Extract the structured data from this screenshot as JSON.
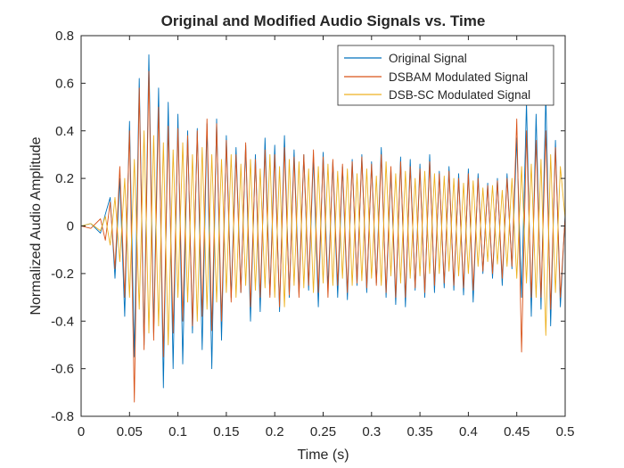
{
  "chart_data": {
    "type": "line",
    "title": "Original and Modified Audio Signals vs. Time",
    "xlabel": "Time (s)",
    "ylabel": "Normalized Audio Amplitude",
    "xlim": [
      0,
      0.5
    ],
    "ylim": [
      -0.8,
      0.8
    ],
    "x_ticks": [
      0,
      0.05,
      0.1,
      0.15,
      0.2,
      0.25,
      0.3,
      0.35,
      0.4,
      0.45,
      0.5
    ],
    "x_tick_labels": [
      "0",
      "0.05",
      "0.1",
      "0.15",
      "0.2",
      "0.25",
      "0.3",
      "0.35",
      "0.4",
      "0.45",
      "0.5"
    ],
    "y_ticks": [
      -0.8,
      -0.6,
      -0.4,
      -0.2,
      0,
      0.2,
      0.4,
      0.6,
      0.8
    ],
    "y_tick_labels": [
      "-0.8",
      "-0.6",
      "-0.4",
      "-0.2",
      "0",
      "0.2",
      "0.4",
      "0.6",
      "0.8"
    ],
    "grid": false,
    "legend_position": "top-right",
    "series": [
      {
        "name": "Original Signal",
        "color": "#0072BD",
        "x": [
          0.0,
          0.01,
          0.02,
          0.025,
          0.03,
          0.035,
          0.04,
          0.045,
          0.05,
          0.055,
          0.06,
          0.065,
          0.07,
          0.075,
          0.08,
          0.085,
          0.09,
          0.095,
          0.1,
          0.105,
          0.11,
          0.115,
          0.12,
          0.125,
          0.13,
          0.135,
          0.14,
          0.145,
          0.15,
          0.155,
          0.16,
          0.165,
          0.17,
          0.175,
          0.18,
          0.185,
          0.19,
          0.195,
          0.2,
          0.205,
          0.21,
          0.215,
          0.22,
          0.225,
          0.23,
          0.235,
          0.24,
          0.245,
          0.25,
          0.255,
          0.26,
          0.265,
          0.27,
          0.275,
          0.28,
          0.285,
          0.29,
          0.295,
          0.3,
          0.305,
          0.31,
          0.315,
          0.32,
          0.325,
          0.33,
          0.335,
          0.34,
          0.345,
          0.35,
          0.355,
          0.36,
          0.365,
          0.37,
          0.375,
          0.38,
          0.385,
          0.39,
          0.395,
          0.4,
          0.405,
          0.41,
          0.415,
          0.42,
          0.425,
          0.43,
          0.435,
          0.44,
          0.445,
          0.45,
          0.455,
          0.46,
          0.465,
          0.47,
          0.475,
          0.48,
          0.485,
          0.49,
          0.495,
          0.5
        ],
        "y": [
          0.0,
          0.01,
          -0.03,
          0.05,
          0.12,
          -0.22,
          0.2,
          -0.38,
          0.44,
          -0.55,
          0.62,
          -0.5,
          0.72,
          -0.45,
          0.58,
          -0.68,
          0.52,
          -0.6,
          0.47,
          -0.58,
          0.4,
          -0.45,
          0.41,
          -0.52,
          0.43,
          -0.6,
          0.45,
          -0.48,
          0.38,
          -0.3,
          0.33,
          -0.28,
          0.34,
          -0.4,
          0.3,
          -0.36,
          0.37,
          -0.29,
          0.34,
          -0.36,
          0.38,
          -0.3,
          0.32,
          -0.28,
          0.3,
          -0.27,
          0.29,
          -0.34,
          0.31,
          -0.26,
          0.27,
          -0.3,
          0.25,
          -0.31,
          0.28,
          -0.25,
          0.3,
          -0.28,
          0.27,
          -0.24,
          0.33,
          -0.3,
          0.24,
          -0.33,
          0.29,
          -0.34,
          0.28,
          -0.27,
          0.26,
          -0.3,
          0.3,
          -0.28,
          0.23,
          -0.26,
          0.25,
          -0.27,
          0.22,
          -0.29,
          0.24,
          -0.32,
          0.22,
          -0.2,
          0.18,
          -0.22,
          0.2,
          -0.25,
          0.22,
          -0.18,
          0.37,
          -0.3,
          0.52,
          -0.38,
          0.47,
          -0.35,
          0.55,
          -0.42,
          0.36,
          -0.34,
          0.05
        ]
      },
      {
        "name": "DSBAM Modulated Signal",
        "color": "#D95319",
        "x": [
          0.0,
          0.01,
          0.02,
          0.025,
          0.03,
          0.035,
          0.04,
          0.045,
          0.05,
          0.055,
          0.06,
          0.065,
          0.07,
          0.075,
          0.08,
          0.085,
          0.09,
          0.095,
          0.1,
          0.105,
          0.11,
          0.115,
          0.12,
          0.125,
          0.13,
          0.135,
          0.14,
          0.145,
          0.15,
          0.155,
          0.16,
          0.165,
          0.17,
          0.175,
          0.18,
          0.185,
          0.19,
          0.195,
          0.2,
          0.205,
          0.21,
          0.215,
          0.22,
          0.225,
          0.23,
          0.235,
          0.24,
          0.245,
          0.25,
          0.255,
          0.26,
          0.265,
          0.27,
          0.275,
          0.28,
          0.285,
          0.29,
          0.295,
          0.3,
          0.305,
          0.31,
          0.315,
          0.32,
          0.325,
          0.33,
          0.335,
          0.34,
          0.345,
          0.35,
          0.355,
          0.36,
          0.365,
          0.37,
          0.375,
          0.38,
          0.385,
          0.39,
          0.395,
          0.4,
          0.405,
          0.41,
          0.415,
          0.42,
          0.425,
          0.43,
          0.435,
          0.44,
          0.445,
          0.45,
          0.455,
          0.46,
          0.465,
          0.47,
          0.475,
          0.48,
          0.485,
          0.49,
          0.495,
          0.5
        ],
        "y": [
          0.0,
          -0.01,
          0.03,
          -0.06,
          0.1,
          -0.18,
          0.25,
          -0.3,
          0.4,
          -0.74,
          0.58,
          -0.52,
          0.65,
          -0.48,
          0.5,
          -0.55,
          0.42,
          -0.45,
          0.41,
          -0.4,
          0.38,
          -0.42,
          0.4,
          -0.38,
          0.45,
          -0.44,
          0.43,
          -0.4,
          0.36,
          -0.32,
          0.3,
          -0.28,
          0.35,
          -0.34,
          0.28,
          -0.3,
          0.32,
          -0.3,
          0.3,
          -0.34,
          0.33,
          -0.29,
          0.29,
          -0.3,
          0.3,
          -0.25,
          0.32,
          -0.28,
          0.29,
          -0.3,
          0.28,
          -0.25,
          0.26,
          -0.28,
          0.27,
          -0.24,
          0.29,
          -0.26,
          0.26,
          -0.25,
          0.3,
          -0.28,
          0.25,
          -0.3,
          0.27,
          -0.3,
          0.25,
          -0.26,
          0.24,
          -0.28,
          0.27,
          -0.25,
          0.22,
          -0.24,
          0.23,
          -0.25,
          0.2,
          -0.26,
          0.22,
          -0.27,
          0.2,
          -0.19,
          0.17,
          -0.2,
          0.19,
          -0.22,
          0.2,
          -0.17,
          0.45,
          -0.53,
          0.4,
          -0.3,
          0.36,
          -0.3,
          0.4,
          -0.35,
          0.33,
          -0.3,
          0.04
        ]
      },
      {
        "name": "DSB-SC Modulated Signal",
        "color": "#EDB120",
        "x": [
          0.0,
          0.01,
          0.02,
          0.025,
          0.03,
          0.035,
          0.04,
          0.045,
          0.05,
          0.055,
          0.06,
          0.065,
          0.07,
          0.075,
          0.08,
          0.085,
          0.09,
          0.095,
          0.1,
          0.105,
          0.11,
          0.115,
          0.12,
          0.125,
          0.13,
          0.135,
          0.14,
          0.145,
          0.15,
          0.155,
          0.16,
          0.165,
          0.17,
          0.175,
          0.18,
          0.185,
          0.19,
          0.195,
          0.2,
          0.205,
          0.21,
          0.215,
          0.22,
          0.225,
          0.23,
          0.235,
          0.24,
          0.245,
          0.25,
          0.255,
          0.26,
          0.265,
          0.27,
          0.275,
          0.28,
          0.285,
          0.29,
          0.295,
          0.3,
          0.305,
          0.31,
          0.315,
          0.32,
          0.325,
          0.33,
          0.335,
          0.34,
          0.345,
          0.35,
          0.355,
          0.36,
          0.365,
          0.37,
          0.375,
          0.38,
          0.385,
          0.39,
          0.395,
          0.4,
          0.405,
          0.41,
          0.415,
          0.42,
          0.425,
          0.43,
          0.435,
          0.44,
          0.445,
          0.45,
          0.455,
          0.46,
          0.465,
          0.47,
          0.475,
          0.48,
          0.485,
          0.49,
          0.495,
          0.5
        ],
        "y": [
          0.0,
          0.01,
          -0.02,
          0.04,
          -0.08,
          0.12,
          -0.15,
          0.2,
          -0.3,
          0.28,
          -0.35,
          0.4,
          -0.45,
          0.38,
          -0.42,
          0.35,
          -0.5,
          0.32,
          -0.3,
          0.35,
          -0.32,
          0.3,
          -0.4,
          0.33,
          -0.35,
          0.3,
          -0.32,
          0.28,
          -0.28,
          0.3,
          -0.3,
          0.26,
          -0.25,
          0.28,
          -0.27,
          0.24,
          -0.26,
          0.3,
          -0.3,
          0.25,
          -0.34,
          0.28,
          -0.25,
          0.27,
          -0.26,
          0.24,
          -0.28,
          0.25,
          -0.24,
          0.26,
          -0.25,
          0.23,
          -0.22,
          0.24,
          -0.25,
          0.22,
          -0.23,
          0.24,
          -0.22,
          0.21,
          -0.25,
          0.27,
          -0.21,
          0.22,
          -0.24,
          0.23,
          -0.22,
          0.2,
          -0.21,
          0.23,
          -0.2,
          0.22,
          -0.2,
          0.21,
          -0.19,
          0.2,
          -0.21,
          0.18,
          -0.2,
          0.19,
          -0.17,
          0.16,
          -0.15,
          0.17,
          -0.16,
          0.15,
          -0.17,
          0.2,
          -0.22,
          0.25,
          -0.24,
          0.26,
          -0.3,
          0.28,
          -0.46,
          0.3,
          -0.28,
          0.25,
          0.03
        ]
      }
    ]
  }
}
